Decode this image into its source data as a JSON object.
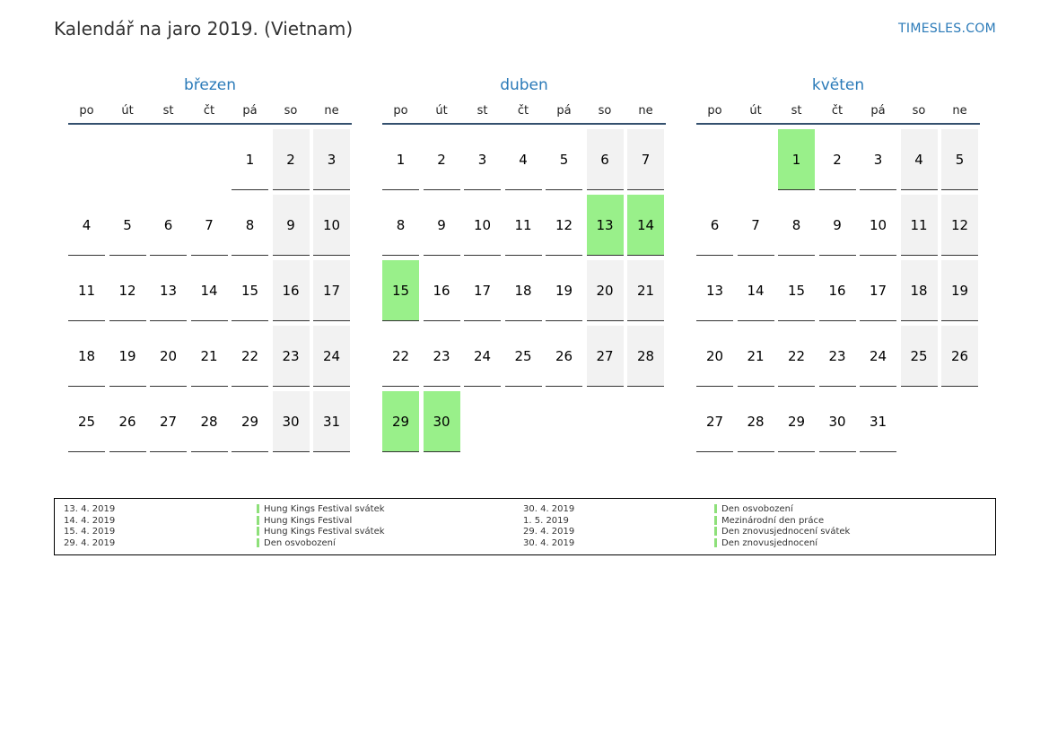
{
  "header": {
    "title": "Kalendář na jaro 2019. (Vietnam)",
    "site": "TIMESLES.COM"
  },
  "weekdays": [
    "po",
    "út",
    "st",
    "čt",
    "pá",
    "so",
    "ne"
  ],
  "colors": {
    "accent": "#2a7ab8",
    "holiday": "#99f08a",
    "weekend": "#f2f2f2"
  },
  "months": [
    {
      "name": "březen",
      "offset": 4,
      "days": 31,
      "holidays": []
    },
    {
      "name": "duben",
      "offset": 0,
      "days": 30,
      "holidays": [
        13,
        14,
        15,
        29,
        30
      ]
    },
    {
      "name": "květen",
      "offset": 2,
      "days": 31,
      "holidays": [
        1
      ]
    }
  ],
  "legend": {
    "left": [
      {
        "date": "13. 4. 2019",
        "name": "Hung Kings Festival svátek"
      },
      {
        "date": "14. 4. 2019",
        "name": "Hung Kings Festival"
      },
      {
        "date": "15. 4. 2019",
        "name": "Hung Kings Festival svátek"
      },
      {
        "date": "29. 4. 2019",
        "name": "Den osvobození"
      }
    ],
    "right": [
      {
        "date": "30. 4. 2019",
        "name": "Den osvobození"
      },
      {
        "date": "1. 5. 2019",
        "name": "Mezinárodní den práce"
      },
      {
        "date": "29. 4. 2019",
        "name": "Den znovusjednocení svátek"
      },
      {
        "date": "30. 4. 2019",
        "name": "Den znovusjednocení"
      }
    ]
  }
}
